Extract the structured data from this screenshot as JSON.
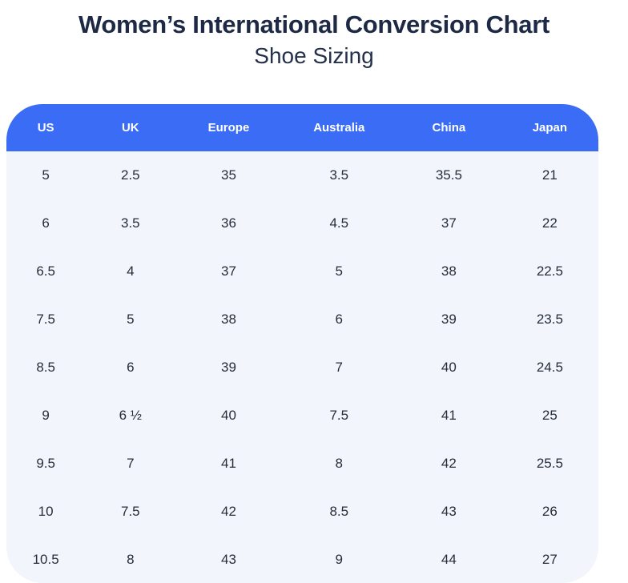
{
  "page": {
    "title": "Women’s International Conversion Chart",
    "subtitle": "Shoe Sizing"
  },
  "chart_data": {
    "type": "table",
    "title": "Women’s International Conversion Chart",
    "subtitle": "Shoe Sizing",
    "columns": [
      "US",
      "UK",
      "Europe",
      "Australia",
      "China",
      "Japan"
    ],
    "rows": [
      [
        "5",
        "2.5",
        "35",
        "3.5",
        "35.5",
        "21"
      ],
      [
        "6",
        "3.5",
        "36",
        "4.5",
        "37",
        "22"
      ],
      [
        "6.5",
        "4",
        "37",
        "5",
        "38",
        "22.5"
      ],
      [
        "7.5",
        "5",
        "38",
        "6",
        "39",
        "23.5"
      ],
      [
        "8.5",
        "6",
        "39",
        "7",
        "40",
        "24.5"
      ],
      [
        "9",
        "6 ½",
        "40",
        "7.5",
        "41",
        "25"
      ],
      [
        "9.5",
        "7",
        "41",
        "8",
        "42",
        "25.5"
      ],
      [
        "10",
        "7.5",
        "42",
        "8.5",
        "43",
        "26"
      ],
      [
        "10.5",
        "8",
        "43",
        "9",
        "44",
        "27"
      ]
    ],
    "column_widths_percent": [
      13.3,
      15.3,
      17.9,
      19.4,
      17.7,
      16.4
    ],
    "layout": {
      "header_align": "center",
      "cell_align": "center",
      "corner_radius_px": 45
    }
  },
  "colors": {
    "header_bg": "#3a6cf6",
    "header_text": "#ffffff",
    "body_bg": "#f2f6fc",
    "title_text": "#1e2a45",
    "subtitle_text": "#25314a",
    "cell_text": "#262d3a",
    "page_bg": "#ffffff"
  }
}
